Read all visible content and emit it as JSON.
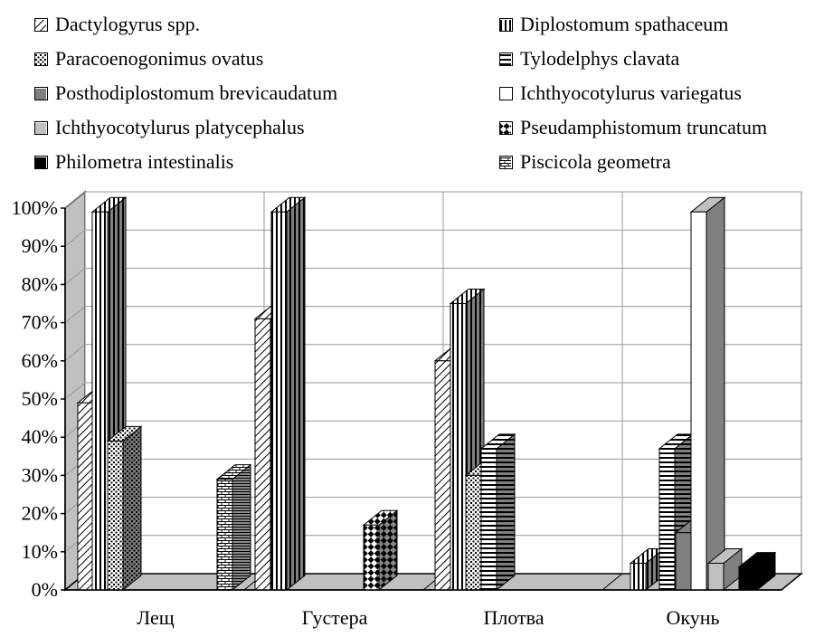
{
  "chart_data": {
    "type": "bar",
    "title": "",
    "xlabel": "",
    "ylabel": "",
    "ylim": [
      0,
      100
    ],
    "grid": true,
    "y_tick_labels": [
      "0%",
      "10%",
      "20%",
      "30%",
      "40%",
      "50%",
      "60%",
      "70%",
      "80%",
      "90%",
      "100%"
    ],
    "categories": [
      "Лещ",
      "Густера",
      "Плотва",
      "Окунь"
    ],
    "series": [
      {
        "name": "Dactylogyrus spp.",
        "pattern": "diag",
        "values": [
          49,
          71,
          60,
          0
        ]
      },
      {
        "name": "Diplostomum spathaceum",
        "pattern": "vert",
        "values": [
          99,
          99,
          75,
          7
        ]
      },
      {
        "name": "Paracoenogonimus ovatus",
        "pattern": "dots",
        "values": [
          39,
          0,
          30,
          0
        ]
      },
      {
        "name": "Tylodelphys clavata",
        "pattern": "horiz",
        "values": [
          0,
          0,
          37,
          37
        ]
      },
      {
        "name": "Posthodiplostomum brevicaudatum",
        "pattern": "darkgray",
        "values": [
          0,
          0,
          0,
          15
        ]
      },
      {
        "name": "Ichthyocotylurus variegatus",
        "pattern": "white",
        "values": [
          0,
          0,
          0,
          99
        ]
      },
      {
        "name": "Ichthyocotylurus platycephalus",
        "pattern": "lightgray",
        "values": [
          0,
          0,
          0,
          7
        ]
      },
      {
        "name": "Pseudamphistomum truncatum",
        "pattern": "checker",
        "values": [
          0,
          17,
          0,
          0
        ]
      },
      {
        "name": "Philometra intestinalis",
        "pattern": "black",
        "values": [
          0,
          0,
          0,
          6
        ]
      },
      {
        "name": "Piscicola geometra",
        "pattern": "brick",
        "values": [
          29,
          0,
          0,
          0
        ]
      }
    ]
  }
}
